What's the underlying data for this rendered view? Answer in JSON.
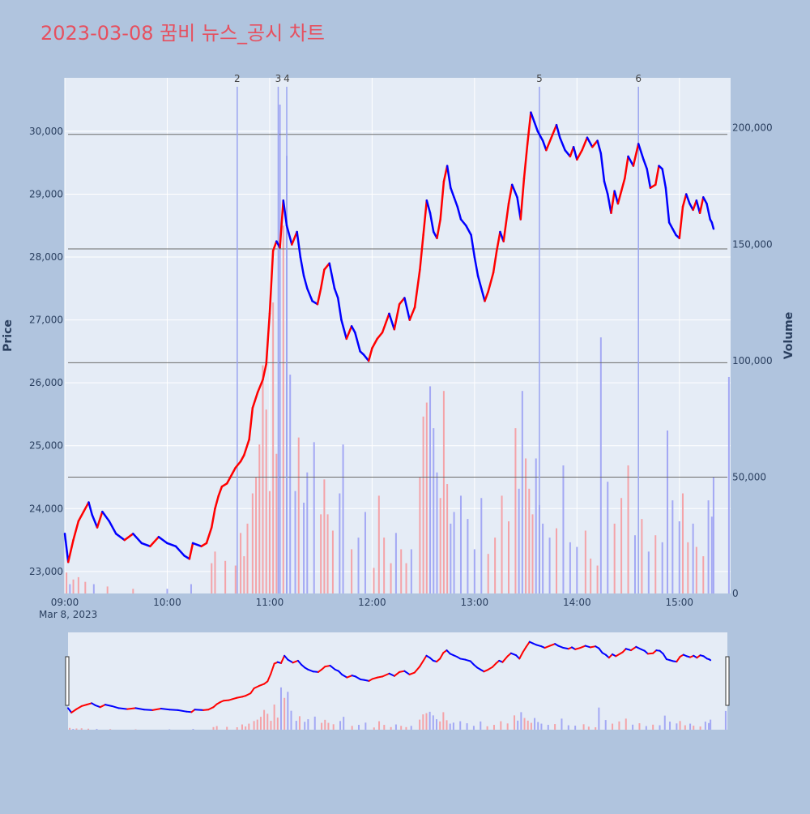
{
  "title": "2023-03-08 꿈비 뉴스_공시 차트",
  "colors": {
    "background": "#b0c4de",
    "plot_bg": "#e5ecf6",
    "title": "#e6505f",
    "up": "#ff0000",
    "down": "#0000ff",
    "up_volume": "#f4a3a8",
    "down_volume": "#a3a8f4",
    "event_line": "#9aa4f0",
    "hline": "#6b6b6b"
  },
  "chart_data": {
    "type": "line",
    "title": "2023-03-08 꿈비 뉴스_공시 차트",
    "xlabel": "",
    "ylabel": "Price",
    "y2label": "Volume",
    "date_label": "Mar 8, 2023",
    "x_ticks": [
      "09:00",
      "10:00",
      "11:00",
      "12:00",
      "13:00",
      "14:00",
      "15:00"
    ],
    "x_range": [
      "09:00",
      "15:30"
    ],
    "y_ticks": [
      23000,
      24000,
      25000,
      26000,
      27000,
      28000,
      29000,
      30000
    ],
    "y_range": [
      22650,
      30850
    ],
    "y2_ticks": [
      0,
      50000,
      100000,
      150000,
      200000
    ],
    "y2_range": [
      0,
      221500
    ],
    "grid": true,
    "price_series": {
      "name": "",
      "points": [
        [
          "09:00",
          23600
        ],
        [
          "09:02",
          23150
        ],
        [
          "09:05",
          23500
        ],
        [
          "09:08",
          23800
        ],
        [
          "09:11",
          23950
        ],
        [
          "09:14",
          24100
        ],
        [
          "09:16",
          23900
        ],
        [
          "09:19",
          23700
        ],
        [
          "09:22",
          23950
        ],
        [
          "09:26",
          23800
        ],
        [
          "09:30",
          23600
        ],
        [
          "09:35",
          23500
        ],
        [
          "09:40",
          23600
        ],
        [
          "09:45",
          23450
        ],
        [
          "09:50",
          23400
        ],
        [
          "09:55",
          23550
        ],
        [
          "10:00",
          23450
        ],
        [
          "10:05",
          23400
        ],
        [
          "10:10",
          23250
        ],
        [
          "10:13",
          23200
        ],
        [
          "10:15",
          23450
        ],
        [
          "10:20",
          23400
        ],
        [
          "10:23",
          23450
        ],
        [
          "10:26",
          23700
        ],
        [
          "10:28",
          24000
        ],
        [
          "10:30",
          24200
        ],
        [
          "10:32",
          24350
        ],
        [
          "10:35",
          24400
        ],
        [
          "10:37",
          24500
        ],
        [
          "10:40",
          24650
        ],
        [
          "10:43",
          24750
        ],
        [
          "10:45",
          24850
        ],
        [
          "10:48",
          25100
        ],
        [
          "10:50",
          25600
        ],
        [
          "10:53",
          25850
        ],
        [
          "10:56",
          26050
        ],
        [
          "10:58",
          26300
        ],
        [
          "11:00",
          27100
        ],
        [
          "11:02",
          28100
        ],
        [
          "11:04",
          28250
        ],
        [
          "11:06",
          28150
        ],
        [
          "11:08",
          28900
        ],
        [
          "11:10",
          28500
        ],
        [
          "11:13",
          28200
        ],
        [
          "11:16",
          28400
        ],
        [
          "11:18",
          28000
        ],
        [
          "11:20",
          27700
        ],
        [
          "11:22",
          27500
        ],
        [
          "11:25",
          27300
        ],
        [
          "11:28",
          27250
        ],
        [
          "11:30",
          27500
        ],
        [
          "11:32",
          27800
        ],
        [
          "11:35",
          27900
        ],
        [
          "11:38",
          27500
        ],
        [
          "11:40",
          27350
        ],
        [
          "11:42",
          27000
        ],
        [
          "11:45",
          26700
        ],
        [
          "11:48",
          26900
        ],
        [
          "11:50",
          26800
        ],
        [
          "11:53",
          26500
        ],
        [
          "11:55",
          26450
        ],
        [
          "11:58",
          26350
        ],
        [
          "12:00",
          26550
        ],
        [
          "12:03",
          26700
        ],
        [
          "12:06",
          26800
        ],
        [
          "12:10",
          27100
        ],
        [
          "12:13",
          26850
        ],
        [
          "12:16",
          27250
        ],
        [
          "12:19",
          27350
        ],
        [
          "12:22",
          27000
        ],
        [
          "12:25",
          27200
        ],
        [
          "12:28",
          27800
        ],
        [
          "12:30",
          28350
        ],
        [
          "12:32",
          28900
        ],
        [
          "12:34",
          28700
        ],
        [
          "12:36",
          28400
        ],
        [
          "12:38",
          28300
        ],
        [
          "12:40",
          28600
        ],
        [
          "12:42",
          29200
        ],
        [
          "12:44",
          29450
        ],
        [
          "12:46",
          29100
        ],
        [
          "12:48",
          28950
        ],
        [
          "12:50",
          28800
        ],
        [
          "12:52",
          28600
        ],
        [
          "12:55",
          28500
        ],
        [
          "12:58",
          28350
        ],
        [
          "13:00",
          28000
        ],
        [
          "13:02",
          27700
        ],
        [
          "13:04",
          27500
        ],
        [
          "13:06",
          27300
        ],
        [
          "13:08",
          27450
        ],
        [
          "13:11",
          27750
        ],
        [
          "13:13",
          28100
        ],
        [
          "13:15",
          28400
        ],
        [
          "13:17",
          28250
        ],
        [
          "13:20",
          28850
        ],
        [
          "13:22",
          29150
        ],
        [
          "13:25",
          28950
        ],
        [
          "13:27",
          28600
        ],
        [
          "13:29",
          29250
        ],
        [
          "13:31",
          29800
        ],
        [
          "13:33",
          30300
        ],
        [
          "13:35",
          30150
        ],
        [
          "13:37",
          30000
        ],
        [
          "13:40",
          29850
        ],
        [
          "13:42",
          29700
        ],
        [
          "13:45",
          29900
        ],
        [
          "13:48",
          30100
        ],
        [
          "13:50",
          29900
        ],
        [
          "13:53",
          29700
        ],
        [
          "13:56",
          29600
        ],
        [
          "13:58",
          29750
        ],
        [
          "14:00",
          29550
        ],
        [
          "14:03",
          29700
        ],
        [
          "14:06",
          29900
        ],
        [
          "14:09",
          29750
        ],
        [
          "14:12",
          29850
        ],
        [
          "14:14",
          29650
        ],
        [
          "14:16",
          29200
        ],
        [
          "14:18",
          29000
        ],
        [
          "14:20",
          28700
        ],
        [
          "14:22",
          29050
        ],
        [
          "14:24",
          28850
        ],
        [
          "14:26",
          29050
        ],
        [
          "14:28",
          29250
        ],
        [
          "14:30",
          29600
        ],
        [
          "14:33",
          29450
        ],
        [
          "14:36",
          29800
        ],
        [
          "14:39",
          29550
        ],
        [
          "14:41",
          29400
        ],
        [
          "14:43",
          29100
        ],
        [
          "14:46",
          29150
        ],
        [
          "14:48",
          29450
        ],
        [
          "14:50",
          29400
        ],
        [
          "14:52",
          29100
        ],
        [
          "14:54",
          28550
        ],
        [
          "14:56",
          28450
        ],
        [
          "14:58",
          28350
        ],
        [
          "15:00",
          28300
        ],
        [
          "15:02",
          28800
        ],
        [
          "15:04",
          29000
        ],
        [
          "15:06",
          28850
        ],
        [
          "15:08",
          28750
        ],
        [
          "15:10",
          28900
        ],
        [
          "15:12",
          28700
        ],
        [
          "15:14",
          28950
        ],
        [
          "15:16",
          28850
        ],
        [
          "15:18",
          28600
        ],
        [
          "15:19",
          28550
        ],
        [
          "15:20",
          28450
        ]
      ]
    },
    "volume_series": {
      "name": "",
      "points": [
        [
          "09:01",
          9000
        ],
        [
          "09:03",
          4000
        ],
        [
          "09:05",
          6000
        ],
        [
          "09:08",
          7000
        ],
        [
          "09:12",
          5000
        ],
        [
          "09:17",
          4000
        ],
        [
          "09:25",
          3000
        ],
        [
          "09:40",
          2000
        ],
        [
          "10:00",
          2000
        ],
        [
          "10:14",
          4000
        ],
        [
          "10:26",
          13000
        ],
        [
          "10:28",
          18000
        ],
        [
          "10:34",
          14000
        ],
        [
          "10:40",
          12000
        ],
        [
          "10:43",
          26000
        ],
        [
          "10:45",
          16000
        ],
        [
          "10:47",
          30000
        ],
        [
          "10:50",
          43000
        ],
        [
          "10:52",
          50000
        ],
        [
          "10:54",
          64000
        ],
        [
          "10:56",
          98000
        ],
        [
          "10:58",
          79000
        ],
        [
          "11:00",
          44000
        ],
        [
          "11:02",
          125000
        ],
        [
          "11:04",
          60000
        ],
        [
          "11:06",
          210000
        ],
        [
          "11:08",
          158000
        ],
        [
          "11:10",
          188000
        ],
        [
          "11:12",
          94000
        ],
        [
          "11:15",
          44000
        ],
        [
          "11:17",
          67000
        ],
        [
          "11:20",
          39000
        ],
        [
          "11:22",
          52000
        ],
        [
          "11:26",
          65000
        ],
        [
          "11:30",
          34000
        ],
        [
          "11:32",
          49000
        ],
        [
          "11:34",
          34000
        ],
        [
          "11:37",
          27000
        ],
        [
          "11:41",
          43000
        ],
        [
          "11:43",
          64000
        ],
        [
          "11:48",
          19000
        ],
        [
          "11:52",
          24000
        ],
        [
          "11:56",
          35000
        ],
        [
          "12:01",
          11000
        ],
        [
          "12:04",
          42000
        ],
        [
          "12:07",
          24000
        ],
        [
          "12:11",
          13000
        ],
        [
          "12:14",
          26000
        ],
        [
          "12:17",
          19000
        ],
        [
          "12:20",
          13000
        ],
        [
          "12:23",
          19000
        ],
        [
          "12:28",
          50000
        ],
        [
          "12:30",
          76000
        ],
        [
          "12:32",
          82000
        ],
        [
          "12:34",
          89000
        ],
        [
          "12:36",
          71000
        ],
        [
          "12:38",
          52000
        ],
        [
          "12:40",
          41000
        ],
        [
          "12:42",
          87000
        ],
        [
          "12:44",
          47000
        ],
        [
          "12:46",
          30000
        ],
        [
          "12:48",
          35000
        ],
        [
          "12:52",
          42000
        ],
        [
          "12:56",
          32000
        ],
        [
          "13:00",
          19000
        ],
        [
          "13:04",
          41000
        ],
        [
          "13:08",
          17000
        ],
        [
          "13:12",
          24000
        ],
        [
          "13:16",
          42000
        ],
        [
          "13:20",
          31000
        ],
        [
          "13:24",
          71000
        ],
        [
          "13:26",
          45000
        ],
        [
          "13:28",
          87000
        ],
        [
          "13:30",
          58000
        ],
        [
          "13:32",
          45000
        ],
        [
          "13:34",
          34000
        ],
        [
          "13:36",
          58000
        ],
        [
          "13:38",
          38000
        ],
        [
          "13:40",
          30000
        ],
        [
          "13:44",
          24000
        ],
        [
          "13:48",
          28000
        ],
        [
          "13:52",
          55000
        ],
        [
          "13:56",
          22000
        ],
        [
          "14:00",
          20000
        ],
        [
          "14:05",
          27000
        ],
        [
          "14:08",
          15000
        ],
        [
          "14:12",
          12000
        ],
        [
          "14:14",
          110000
        ],
        [
          "14:18",
          48000
        ],
        [
          "14:22",
          30000
        ],
        [
          "14:26",
          41000
        ],
        [
          "14:30",
          55000
        ],
        [
          "14:34",
          25000
        ],
        [
          "14:38",
          32000
        ],
        [
          "14:42",
          18000
        ],
        [
          "14:46",
          25000
        ],
        [
          "14:50",
          22000
        ],
        [
          "14:53",
          70000
        ],
        [
          "14:56",
          40000
        ],
        [
          "15:00",
          31000
        ],
        [
          "15:02",
          43000
        ],
        [
          "15:05",
          22000
        ],
        [
          "15:08",
          30000
        ],
        [
          "15:10",
          20000
        ],
        [
          "15:14",
          16000
        ],
        [
          "15:17",
          40000
        ],
        [
          "15:19",
          33000
        ],
        [
          "15:20",
          50000
        ],
        [
          "15:29",
          93000
        ]
      ]
    },
    "horizontal_lines": [
      29950,
      28130,
      26320,
      24500
    ],
    "events": [
      {
        "label": "2",
        "time": "10:41"
      },
      {
        "label": "3",
        "time": "11:05"
      },
      {
        "label": "4",
        "time": "11:10"
      },
      {
        "label": "5",
        "time": "13:38"
      },
      {
        "label": "6",
        "time": "14:36"
      }
    ]
  }
}
